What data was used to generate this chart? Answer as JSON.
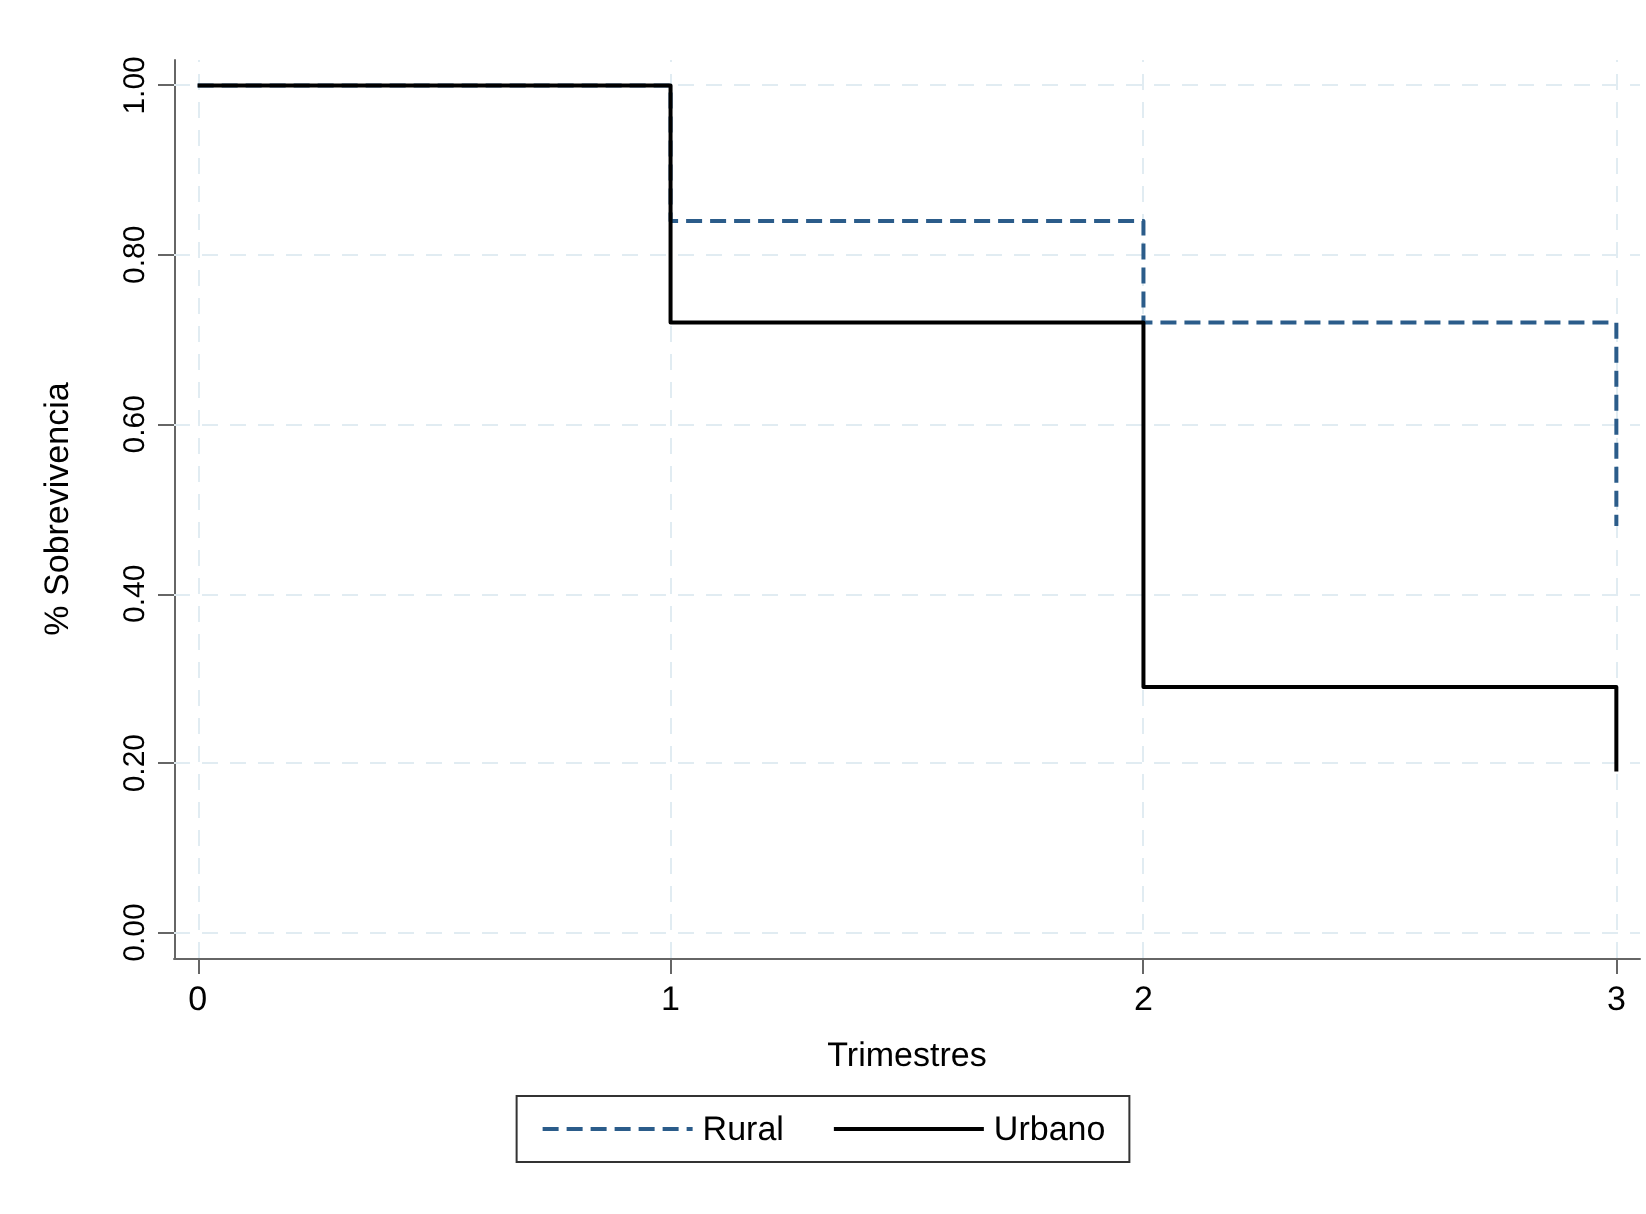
{
  "chart_data": {
    "type": "step",
    "xlabel": "Trimestres",
    "ylabel": "% Sobrevivencia",
    "x": [
      0,
      1,
      2,
      3
    ],
    "series": [
      {
        "name": "Rural",
        "color": "#2b5c8a",
        "line_style": "dashed",
        "values": [
          1.0,
          0.84,
          0.72,
          0.48
        ]
      },
      {
        "name": "Urbano",
        "color": "#000000",
        "line_style": "solid",
        "values": [
          1.0,
          0.72,
          0.29,
          0.19
        ]
      }
    ],
    "xlim": [
      -0.05,
      3.05
    ],
    "xticks": [
      0,
      1,
      2,
      3
    ],
    "ylim": [
      -0.03,
      1.03
    ],
    "yticks": [
      {
        "value": 0,
        "label": "0.00"
      },
      {
        "value": 0.2,
        "label": "0.20"
      },
      {
        "value": 0.4,
        "label": "0.40"
      },
      {
        "value": 0.6,
        "label": "0.60"
      },
      {
        "value": 0.8,
        "label": "0.80"
      },
      {
        "value": 1,
        "label": "1.00"
      }
    ],
    "grid": true,
    "legend": "bottom",
    "marker": "none"
  }
}
